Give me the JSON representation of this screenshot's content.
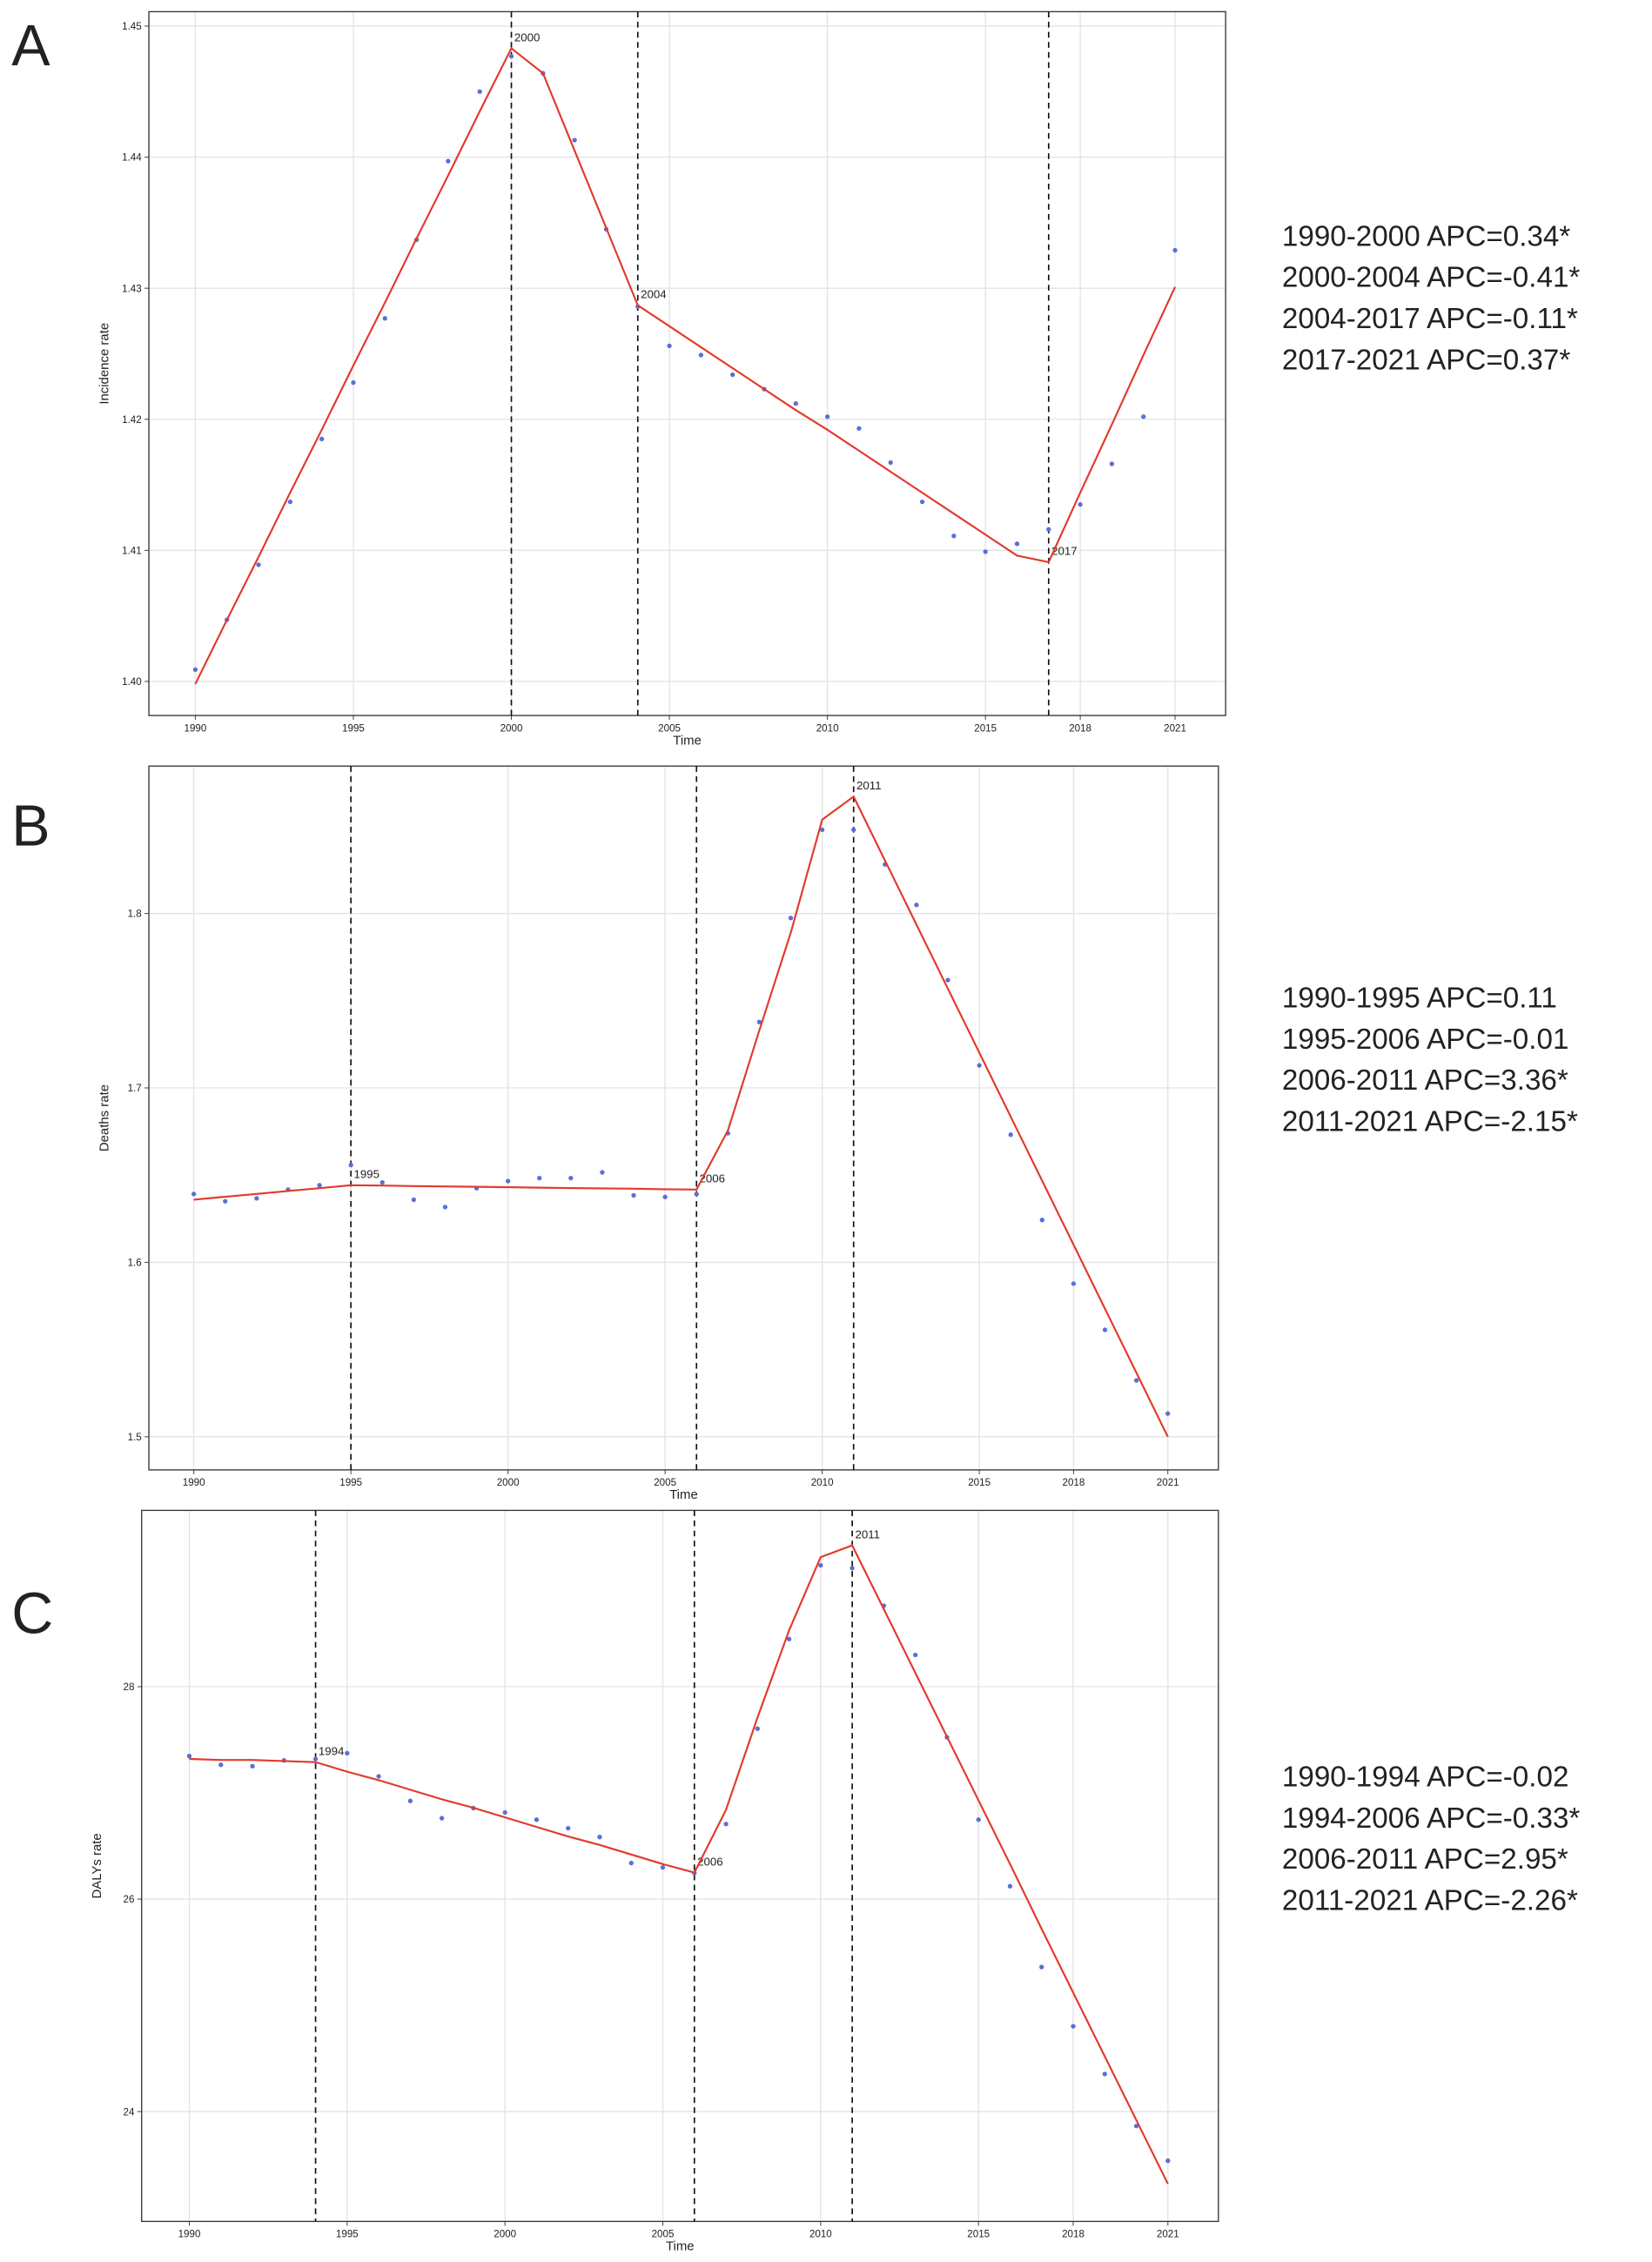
{
  "chart_data": [
    {
      "type": "line",
      "panel_label": "A",
      "x_label": "Time",
      "y_label": "Incidence rate",
      "x": [
        1990,
        1991,
        1992,
        1993,
        1994,
        1995,
        1996,
        1997,
        1998,
        1999,
        2000,
        2001,
        2002,
        2003,
        2004,
        2005,
        2006,
        2007,
        2008,
        2009,
        2010,
        2011,
        2012,
        2013,
        2014,
        2015,
        2016,
        2017,
        2018,
        2019,
        2020,
        2021
      ],
      "series": [
        {
          "style": "points",
          "color": "#5a6fd6",
          "values": [
            1.4009,
            1.4047,
            1.4089,
            1.4137,
            1.4185,
            1.4228,
            1.4277,
            1.4337,
            1.4397,
            1.445,
            1.4477,
            1.4464,
            1.4413,
            1.4345,
            1.4286,
            1.4256,
            1.4249,
            1.4234,
            1.4223,
            1.4212,
            1.4202,
            1.4193,
            1.4167,
            1.4137,
            1.4111,
            1.4099,
            1.4105,
            1.4116,
            1.4135,
            1.4166,
            1.4202,
            1.4329
          ]
        },
        {
          "style": "line",
          "color": "#e23a2c",
          "values": [
            1.3998,
            1.4047,
            1.4095,
            1.4144,
            1.4192,
            1.4241,
            1.4289,
            1.4338,
            1.4386,
            1.4435,
            1.4483,
            1.4464,
            1.4405,
            1.4346,
            1.4287,
            1.4271,
            1.4255,
            1.4239,
            1.4223,
            1.4207,
            1.4192,
            1.4176,
            1.416,
            1.4144,
            1.4128,
            1.4112,
            1.4096,
            1.4091,
            1.4144,
            1.4196,
            1.4249,
            1.4301
          ]
        }
      ],
      "joinpoints": [
        2000,
        2004,
        2017
      ],
      "annotations": [
        "1990-2000 APC=0.34*",
        "2000-2004 APC=-0.41*",
        "2004-2017 APC=-0.11*",
        "2017-2021 APC=0.37*"
      ],
      "xlim": [
        1988.53,
        2022.6
      ],
      "xticks": [
        1990,
        1995,
        2000,
        2005,
        2010,
        2015,
        2018,
        2021
      ],
      "ylim": [
        1.3974,
        1.4511
      ],
      "yticks": [
        {
          "value": 1.4,
          "label": "1.40"
        },
        1.41,
        1.42,
        1.43,
        1.44,
        1.45
      ],
      "grid": true
    },
    {
      "type": "line",
      "panel_label": "B",
      "x_label": "Time",
      "y_label": "Deaths rate",
      "x": [
        1990,
        1991,
        1992,
        1993,
        1994,
        1995,
        1996,
        1997,
        1998,
        1999,
        2000,
        2001,
        2002,
        2003,
        2004,
        2005,
        2006,
        2007,
        2008,
        2009,
        2010,
        2011,
        2012,
        2013,
        2014,
        2015,
        2016,
        2017,
        2018,
        2019,
        2020,
        2021
      ],
      "series": [
        {
          "style": "points",
          "color": "#5a6fd6",
          "values": [
            1.6392,
            1.635,
            1.6367,
            1.6417,
            1.6442,
            1.6558,
            1.6458,
            1.6359,
            1.6317,
            1.6425,
            1.6466,
            1.6483,
            1.6483,
            1.6516,
            1.6384,
            1.6375,
            1.6392,
            1.674,
            1.7378,
            1.7974,
            1.848,
            1.848,
            1.8281,
            1.8049,
            1.7618,
            1.7129,
            1.6732,
            1.6243,
            1.5878,
            1.5613,
            1.5323,
            1.5133
          ]
        },
        {
          "style": "line",
          "color": "#e23a2c",
          "values": [
            1.6359,
            1.6376,
            1.6392,
            1.6409,
            1.6425,
            1.6442,
            1.644,
            1.6437,
            1.6435,
            1.6433,
            1.6431,
            1.6428,
            1.6426,
            1.6424,
            1.6422,
            1.6419,
            1.6417,
            1.6756,
            1.733,
            1.789,
            1.8538,
            1.867,
            1.8303,
            1.7936,
            1.7569,
            1.7202,
            1.6835,
            1.6468,
            1.6101,
            1.5734,
            1.5367,
            1.5
          ]
        }
      ],
      "joinpoints": [
        1995,
        2006,
        2011
      ],
      "annotations": [
        "1990-1995 APC=0.11",
        "1995-2006 APC=-0.01",
        "2006-2011 APC=3.36*",
        "2011-2021 APC=-2.15*"
      ],
      "xlim": [
        1988.57,
        2022.61
      ],
      "xticks": [
        1990,
        1995,
        2000,
        2005,
        2010,
        2015,
        2018,
        2021
      ],
      "ylim": [
        1.481,
        1.8845
      ],
      "yticks": [
        1.5,
        1.6,
        1.7,
        1.8
      ],
      "grid": true
    },
    {
      "type": "line",
      "panel_label": "C",
      "x_label": "Time",
      "y_label": "DALYs rate",
      "x": [
        1990,
        1991,
        1992,
        1993,
        1994,
        1995,
        1996,
        1997,
        1998,
        1999,
        2000,
        2001,
        2002,
        2003,
        2004,
        2005,
        2006,
        2007,
        2008,
        2009,
        2010,
        2011,
        2012,
        2013,
        2014,
        2015,
        2016,
        2017,
        2018,
        2019,
        2020,
        2021
      ],
      "series": [
        {
          "style": "points",
          "color": "#5a6fd6",
          "values": [
            27.347,
            27.265,
            27.252,
            27.306,
            27.32,
            27.374,
            27.156,
            26.925,
            26.762,
            26.857,
            26.816,
            26.748,
            26.667,
            26.585,
            26.34,
            26.299,
            26.245,
            26.707,
            27.605,
            28.449,
            29.143,
            29.116,
            28.762,
            28.299,
            27.524,
            26.748,
            26.122,
            25.361,
            24.803,
            24.354,
            23.864,
            23.537
          ]
        },
        {
          "style": "line",
          "color": "#e23a2c",
          "values": [
            27.32,
            27.31,
            27.31,
            27.3,
            27.29,
            27.2,
            27.12,
            27.03,
            26.94,
            26.86,
            26.77,
            26.68,
            26.59,
            26.51,
            26.42,
            26.33,
            26.25,
            26.84,
            27.71,
            28.53,
            29.22,
            29.33,
            28.73,
            28.13,
            27.53,
            26.93,
            26.33,
            25.72,
            25.12,
            24.52,
            23.92,
            23.32
          ]
        }
      ],
      "joinpoints": [
        1994,
        2006,
        2011
      ],
      "annotations": [
        "1990-1994 APC=-0.02",
        "1994-2006 APC=-0.33*",
        "2006-2011 APC=2.95*",
        "2011-2021 APC=-2.26*"
      ],
      "xlim": [
        1988.49,
        2022.6
      ],
      "xticks": [
        1990,
        1995,
        2000,
        2005,
        2010,
        2015,
        2018,
        2021
      ],
      "ylim": [
        22.966,
        29.66
      ],
      "yticks": [
        24,
        26,
        28
      ],
      "grid": true
    }
  ]
}
